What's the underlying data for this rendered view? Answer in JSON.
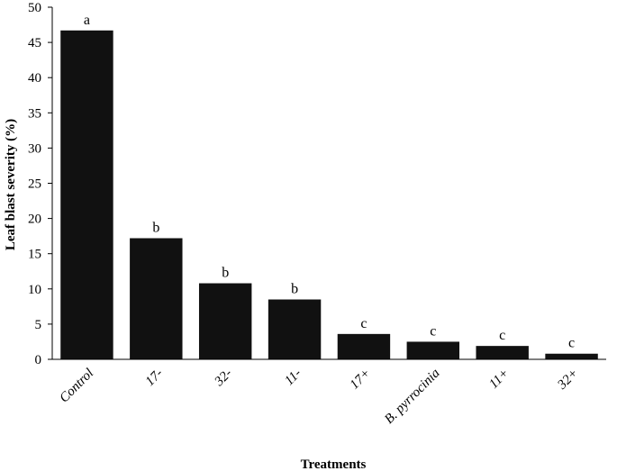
{
  "chart_data": {
    "type": "bar",
    "title": "",
    "xlabel": "Treatments",
    "ylabel": "Leaf blast severity (%)",
    "ylim": [
      0,
      50
    ],
    "yticks": [
      0,
      5,
      10,
      15,
      20,
      25,
      30,
      35,
      40,
      45,
      50
    ],
    "grid": false,
    "legend": "none",
    "bar_color": "#111111",
    "categories": [
      "Control",
      "17-",
      "32-",
      "11-",
      "17+",
      "B. pyrrocinia",
      "11+",
      "32+"
    ],
    "values": [
      46.7,
      17.2,
      10.8,
      8.5,
      3.6,
      2.5,
      1.9,
      0.8
    ],
    "data_labels": [
      "a",
      "b",
      "b",
      "b",
      "c",
      "c",
      "c",
      "c"
    ]
  }
}
